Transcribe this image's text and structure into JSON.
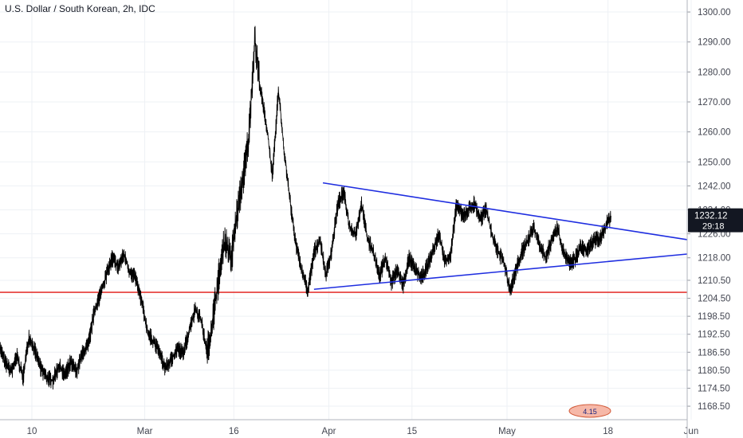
{
  "title": "U.S. Dollar / South Korean, 2h, IDC",
  "chart_data": {
    "type": "line",
    "title": "U.S. Dollar / South Korean, 2h, IDC",
    "xlabel": "",
    "ylabel": "",
    "ylim": [
      1164.0,
      1304.0
    ],
    "y_ticks": [
      1168.5,
      1174.5,
      1180.5,
      1186.5,
      1192.5,
      1198.5,
      1204.5,
      1210.5,
      1218.0,
      1226.0,
      1234.0,
      1242.0,
      1250.0,
      1260.0,
      1270.0,
      1280.0,
      1290.0,
      1300.0
    ],
    "y_tick_labels": [
      "1168.50",
      "1174.50",
      "1180.50",
      "1186.50",
      "1192.50",
      "1198.50",
      "1204.50",
      "1210.50",
      "1218.00",
      "1226.00",
      "1234.00",
      "1242.00",
      "1250.00",
      "1260.00",
      "1270.00",
      "1280.00",
      "1290.00",
      "1300.00"
    ],
    "x_ticks": [
      {
        "label": "10",
        "day": 0
      },
      {
        "label": "Mar",
        "day": 19
      },
      {
        "label": "16",
        "day": 34
      },
      {
        "label": "Apr",
        "day": 50
      },
      {
        "label": "15",
        "day": 64
      },
      {
        "label": "May",
        "day": 80
      },
      {
        "label": "18",
        "day": 97
      },
      {
        "label": "Jun",
        "day": 111
      }
    ],
    "series": [
      {
        "points": [
          [
            -5.5,
            1188.5
          ],
          [
            -4.5,
            1183
          ],
          [
            -3.5,
            1180
          ],
          [
            -2.5,
            1185
          ],
          [
            -1.5,
            1178
          ],
          [
            -0.5,
            1192
          ],
          [
            0.5,
            1187
          ],
          [
            1.5,
            1181
          ],
          [
            2.5,
            1178
          ],
          [
            3.5,
            1177
          ],
          [
            4.5,
            1182
          ],
          [
            5.5,
            1179
          ],
          [
            6.5,
            1183
          ],
          [
            7.5,
            1180
          ],
          [
            8.5,
            1186
          ],
          [
            9.5,
            1189
          ],
          [
            10.5,
            1200
          ],
          [
            11.5,
            1206
          ],
          [
            12.5,
            1212
          ],
          [
            13.5,
            1218
          ],
          [
            14.5,
            1215
          ],
          [
            15.5,
            1219
          ],
          [
            16.5,
            1213
          ],
          [
            17.5,
            1211
          ],
          [
            18.5,
            1203
          ],
          [
            19.5,
            1193
          ],
          [
            20.5,
            1190
          ],
          [
            21.5,
            1186
          ],
          [
            22.5,
            1181
          ],
          [
            23.5,
            1184
          ],
          [
            24.5,
            1188
          ],
          [
            25.5,
            1186
          ],
          [
            26.5,
            1194
          ],
          [
            27.5,
            1201
          ],
          [
            28.5,
            1197
          ],
          [
            29.5,
            1186
          ],
          [
            30.5,
            1198
          ],
          [
            31.5,
            1212
          ],
          [
            32.5,
            1224
          ],
          [
            33.5,
            1217
          ],
          [
            34.5,
            1232
          ],
          [
            35.5,
            1244
          ],
          [
            36.5,
            1258
          ],
          [
            37.5,
            1291
          ],
          [
            38.5,
            1274
          ],
          [
            39.5,
            1262
          ],
          [
            40.5,
            1245
          ],
          [
            41.5,
            1274
          ],
          [
            42.5,
            1253
          ],
          [
            43.5,
            1236
          ],
          [
            44.5,
            1222
          ],
          [
            45.5,
            1213
          ],
          [
            46.5,
            1207
          ],
          [
            47.5,
            1220
          ],
          [
            48.5,
            1224
          ],
          [
            49.5,
            1212
          ],
          [
            50.5,
            1221
          ],
          [
            51.5,
            1236
          ],
          [
            52.5,
            1240
          ],
          [
            53.5,
            1228
          ],
          [
            54.5,
            1226
          ],
          [
            55.5,
            1236
          ],
          [
            56.5,
            1224
          ],
          [
            57.5,
            1220
          ],
          [
            58.5,
            1212
          ],
          [
            59.5,
            1218
          ],
          [
            60.5,
            1210
          ],
          [
            61.5,
            1214
          ],
          [
            62.5,
            1209
          ],
          [
            63.5,
            1218
          ],
          [
            64.5,
            1214
          ],
          [
            65.5,
            1211
          ],
          [
            66.5,
            1215
          ],
          [
            67.5,
            1220
          ],
          [
            68.5,
            1226
          ],
          [
            69.5,
            1217
          ],
          [
            70.5,
            1219
          ],
          [
            71.5,
            1236
          ],
          [
            72.5,
            1232
          ],
          [
            73.5,
            1234
          ],
          [
            74.5,
            1236
          ],
          [
            75.5,
            1231
          ],
          [
            76.5,
            1234
          ],
          [
            77.5,
            1225
          ],
          [
            78.5,
            1220
          ],
          [
            79.5,
            1216
          ],
          [
            80.5,
            1207
          ],
          [
            81.5,
            1214
          ],
          [
            82.5,
            1220
          ],
          [
            83.5,
            1224
          ],
          [
            84.5,
            1228
          ],
          [
            85.5,
            1222
          ],
          [
            86.5,
            1218
          ],
          [
            87.5,
            1224
          ],
          [
            88.5,
            1228
          ],
          [
            89.5,
            1220
          ],
          [
            90.5,
            1216
          ],
          [
            91.5,
            1218
          ],
          [
            92.5,
            1222
          ],
          [
            93.5,
            1220
          ],
          [
            94.5,
            1224
          ],
          [
            95.5,
            1224
          ],
          [
            96.5,
            1228
          ],
          [
            97.5,
            1232
          ]
        ]
      }
    ],
    "horizontal_line": {
      "y": 1206.5,
      "color": "#e53935"
    },
    "trendlines": [
      {
        "from": [
          49.0,
          1243.0
        ],
        "to": [
          117.0,
          1222.0
        ],
        "color": "#1f2ee0"
      },
      {
        "from": [
          47.5,
          1207.5
        ],
        "to": [
          117.0,
          1220.5
        ],
        "color": "#1f2ee0"
      }
    ],
    "last_price": {
      "value": 1232.12,
      "label": "1232.12",
      "countdown": "29:18"
    },
    "grid": true
  },
  "colors": {
    "price": "#000000",
    "grid": "#eef1f5",
    "axis_text": "#434651",
    "support": "#e53935",
    "trend": "#1f2ee0",
    "badge_bg": "#131722"
  },
  "logo": {
    "text": "4.15"
  }
}
